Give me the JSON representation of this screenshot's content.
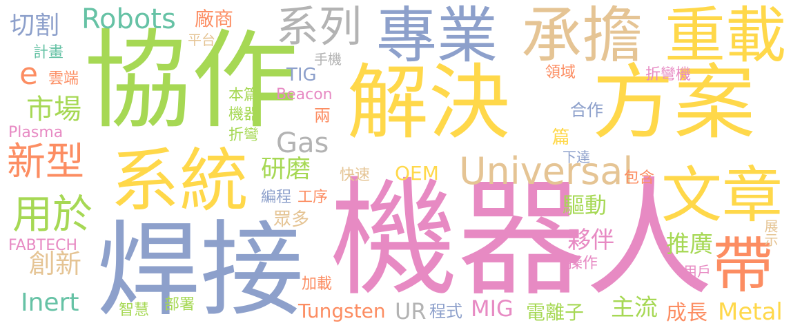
{
  "palette": {
    "yellow": "#FFD84A",
    "green": "#A6D854",
    "pink": "#E78AC3",
    "blue": "#8DA0CB",
    "orange": "#FC8D62",
    "teal": "#66C2A5",
    "tan": "#E5C494",
    "gray": "#B3B3B3"
  },
  "words": [
    {
      "id": "w-jiejue",
      "text": "解決",
      "color": "#FFD84A"
    },
    {
      "id": "w-fangan",
      "text": "方案",
      "color": "#FFD84A"
    },
    {
      "id": "w-xiezuo",
      "text": "協作",
      "color": "#A6D854"
    },
    {
      "id": "w-jiqiren",
      "text": "機器人",
      "color": "#E78AC3"
    },
    {
      "id": "w-hanjie",
      "text": "焊接",
      "color": "#8DA0CB"
    },
    {
      "id": "w-xitong",
      "text": "系統",
      "color": "#FFD84A"
    },
    {
      "id": "w-zhuanye",
      "text": "專業",
      "color": "#8DA0CB"
    },
    {
      "id": "w-chengdan",
      "text": "承擔",
      "color": "#E5C494"
    },
    {
      "id": "w-zhongzai",
      "text": "重載",
      "color": "#FFD84A"
    },
    {
      "id": "w-wenzhang",
      "text": "文章",
      "color": "#FFD84A"
    },
    {
      "id": "w-dai",
      "text": "帶",
      "color": "#FC8D62"
    },
    {
      "id": "w-xilie",
      "text": "系列",
      "color": "#B3B3B3"
    },
    {
      "id": "w-universal",
      "text": "Universal",
      "color": "#E5C494"
    },
    {
      "id": "w-robots",
      "text": "Robots",
      "color": "#66C2A5"
    },
    {
      "id": "w-xinxing",
      "text": "新型",
      "color": "#FC8D62"
    },
    {
      "id": "w-yongyu",
      "text": "用於",
      "color": "#A6D854"
    },
    {
      "id": "w-qiege",
      "text": "切割",
      "color": "#8DA0CB"
    },
    {
      "id": "w-e",
      "text": "e",
      "color": "#FC8D62"
    },
    {
      "id": "w-shichang",
      "text": "市場",
      "color": "#A6D854"
    },
    {
      "id": "w-gas",
      "text": "Gas",
      "color": "#B3B3B3"
    },
    {
      "id": "w-inert",
      "text": "Inert",
      "color": "#66C2A5"
    },
    {
      "id": "w-chuangxin",
      "text": "創新",
      "color": "#E5C494"
    },
    {
      "id": "w-yanmo",
      "text": "研磨",
      "color": "#A6D854"
    },
    {
      "id": "w-oem",
      "text": "OEM",
      "color": "#FFD84A"
    },
    {
      "id": "w-qudong",
      "text": "驅動",
      "color": "#A6D854"
    },
    {
      "id": "w-huoban",
      "text": "夥伴",
      "color": "#E78AC3"
    },
    {
      "id": "w-tuiguang",
      "text": "推廣",
      "color": "#A6D854"
    },
    {
      "id": "w-metal",
      "text": "Metal",
      "color": "#FFD84A"
    },
    {
      "id": "w-mig",
      "text": "MIG",
      "color": "#E78AC3"
    },
    {
      "id": "w-tungsten",
      "text": "Tungsten",
      "color": "#FC8D62"
    },
    {
      "id": "w-ur",
      "text": "UR",
      "color": "#B3B3B3"
    },
    {
      "id": "w-dianlizi",
      "text": "電離子",
      "color": "#A6D854"
    },
    {
      "id": "w-zhuliu",
      "text": "主流",
      "color": "#A6D854"
    },
    {
      "id": "w-chengzhang",
      "text": "成長",
      "color": "#FC8D62"
    },
    {
      "id": "w-tig",
      "text": "TIG",
      "color": "#8DA0CB"
    },
    {
      "id": "w-changshang",
      "text": "廠商",
      "color": "#FC8D62"
    },
    {
      "id": "w-pingtai",
      "text": "平台",
      "color": "#E5C494"
    },
    {
      "id": "w-shouji",
      "text": "手機",
      "color": "#B3B3B3"
    },
    {
      "id": "w-jihua",
      "text": "計畫",
      "color": "#66C2A5"
    },
    {
      "id": "w-yunduan",
      "text": "雲端",
      "color": "#FC8D62"
    },
    {
      "id": "w-plasma",
      "text": "Plasma",
      "color": "#E78AC3"
    },
    {
      "id": "w-fabtech",
      "text": "FABTECH",
      "color": "#E78AC3"
    },
    {
      "id": "w-beacon",
      "text": "Beacon",
      "color": "#E78AC3"
    },
    {
      "id": "w-benpian",
      "text": "本篇",
      "color": "#A6D854"
    },
    {
      "id": "w-jiqi",
      "text": "機器",
      "color": "#A6D854"
    },
    {
      "id": "w-zhewan",
      "text": "折彎",
      "color": "#A6D854"
    },
    {
      "id": "w-liang",
      "text": "兩",
      "color": "#FC8D62"
    },
    {
      "id": "w-lingyu",
      "text": "領域",
      "color": "#FC8D62"
    },
    {
      "id": "w-zhewanji",
      "text": "折彎機",
      "color": "#E78AC3"
    },
    {
      "id": "w-hezuo",
      "text": "合作",
      "color": "#8DA0CB"
    },
    {
      "id": "w-pian",
      "text": "篇",
      "color": "#FFD84A"
    },
    {
      "id": "w-xiada",
      "text": "下達",
      "color": "#8DA0CB"
    },
    {
      "id": "w-kuaisu",
      "text": "快速",
      "color": "#E5C494"
    },
    {
      "id": "w-baohan",
      "text": "包含",
      "color": "#FC8D62"
    },
    {
      "id": "w-biancheng",
      "text": "編程",
      "color": "#8DA0CB"
    },
    {
      "id": "w-gongxu",
      "text": "工序",
      "color": "#FC8D62"
    },
    {
      "id": "w-zhongduo",
      "text": "眾多",
      "color": "#E5C494"
    },
    {
      "id": "w-zhanshi",
      "text": "展示",
      "color": "#E5C494"
    },
    {
      "id": "w-caozuo",
      "text": "操作",
      "color": "#E78AC3"
    },
    {
      "id": "w-yonghu",
      "text": "用戶",
      "color": "#E78AC3"
    },
    {
      "id": "w-jiazai",
      "text": "加載",
      "color": "#FC8D62"
    },
    {
      "id": "w-zhihui",
      "text": "智慧",
      "color": "#A6D854"
    },
    {
      "id": "w-bushu",
      "text": "部署",
      "color": "#A6D854"
    },
    {
      "id": "w-chengshi",
      "text": "程式",
      "color": "#8DA0CB"
    }
  ]
}
